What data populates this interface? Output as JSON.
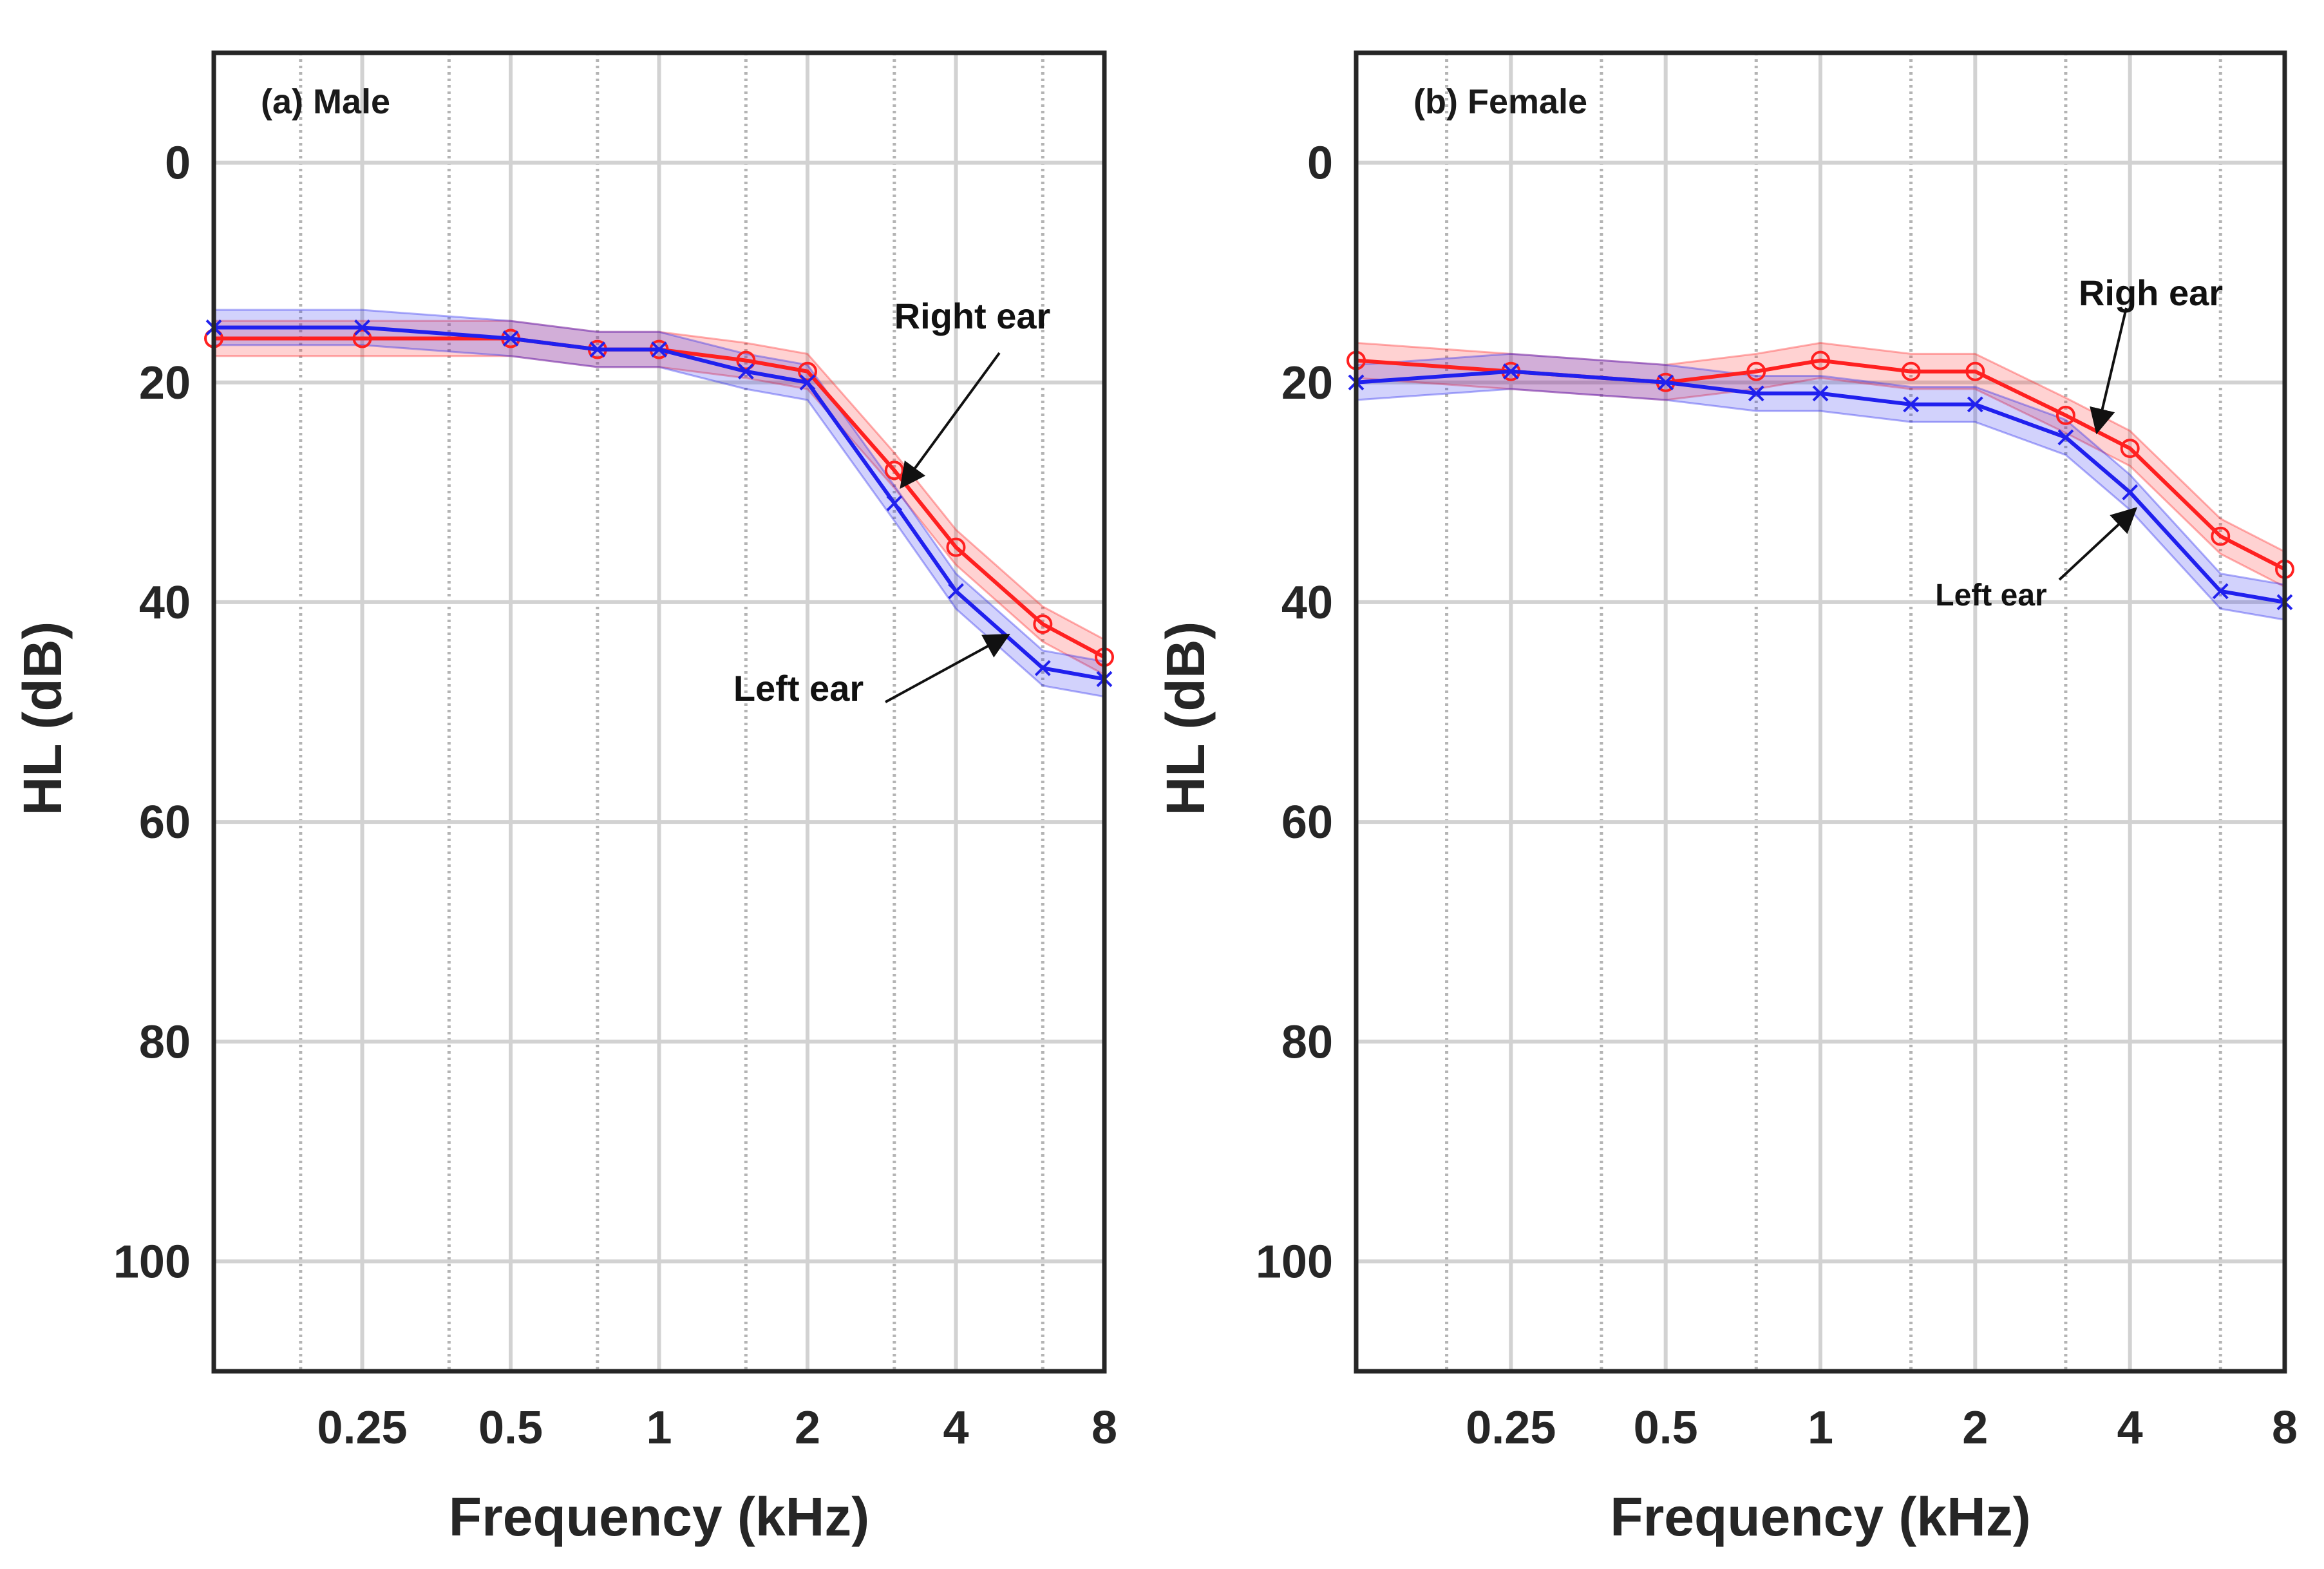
{
  "chart_data": [
    {
      "type": "line",
      "title": "(a) Male",
      "xlabel": "Frequency (kHz)",
      "ylabel": "HL (dB)",
      "xscale": "log",
      "xlim": [
        0.125,
        8
      ],
      "ylim": [
        110,
        -10
      ],
      "y_reversed": true,
      "xtick_labels": [
        "0.25",
        "0.5",
        "1",
        "2",
        "4",
        "8"
      ],
      "xticks": [
        0.25,
        0.5,
        1,
        2,
        4,
        8
      ],
      "yticks": [
        0,
        20,
        40,
        60,
        80,
        100
      ],
      "ytick_labels": [
        "0",
        "20",
        "40",
        "60",
        "80",
        "100"
      ],
      "grid": true,
      "x": [
        0.125,
        0.25,
        0.5,
        0.75,
        1,
        1.5,
        2,
        3,
        4,
        6,
        8
      ],
      "series": [
        {
          "name": "Right ear",
          "color": "#ff2020",
          "marker": "circle",
          "values": [
            16,
            16,
            16,
            17,
            17,
            18,
            19,
            28,
            35,
            42,
            45
          ],
          "band": 1.6
        },
        {
          "name": "Left ear",
          "color": "#2020ee",
          "marker": "x",
          "values": [
            15,
            15,
            16,
            17,
            17,
            19,
            20,
            31,
            39,
            46,
            47
          ],
          "band": 1.6
        }
      ],
      "annotations": [
        {
          "text": "Right ear",
          "target_series": "Right ear",
          "x": 3.1,
          "y": 29.5
        },
        {
          "text": "Left ear",
          "target_series": "Left ear",
          "x": 5.1,
          "y": 43
        }
      ]
    },
    {
      "type": "line",
      "title": "(b) Female",
      "xlabel": "Frequency (kHz)",
      "ylabel": "HL (dB)",
      "xscale": "log",
      "xlim": [
        0.125,
        8
      ],
      "ylim": [
        110,
        -10
      ],
      "y_reversed": true,
      "xtick_labels": [
        "0.25",
        "0.5",
        "1",
        "2",
        "4",
        "8"
      ],
      "xticks": [
        0.25,
        0.5,
        1,
        2,
        4,
        8
      ],
      "yticks": [
        0,
        20,
        40,
        60,
        80,
        100
      ],
      "ytick_labels": [
        "0",
        "20",
        "40",
        "60",
        "80",
        "100"
      ],
      "grid": true,
      "x": [
        0.125,
        0.25,
        0.5,
        0.75,
        1,
        1.5,
        2,
        3,
        4,
        6,
        8
      ],
      "series": [
        {
          "name": "Righ ear",
          "color": "#ff2020",
          "marker": "circle",
          "values": [
            18,
            19,
            20,
            19,
            18,
            19,
            19,
            23,
            26,
            34,
            37
          ],
          "band": 1.6
        },
        {
          "name": "Left ear",
          "color": "#2020ee",
          "marker": "x",
          "values": [
            20,
            19,
            20,
            21,
            21,
            22,
            22,
            25,
            30,
            39,
            40
          ],
          "band": 1.6
        }
      ],
      "annotations": [
        {
          "text": "Righ ear",
          "target_series": "Righ ear",
          "x": 3.45,
          "y": 24.5
        },
        {
          "text": "Left ear",
          "target_series": "Left ear",
          "x": 4.1,
          "y": 31.5
        }
      ]
    }
  ]
}
